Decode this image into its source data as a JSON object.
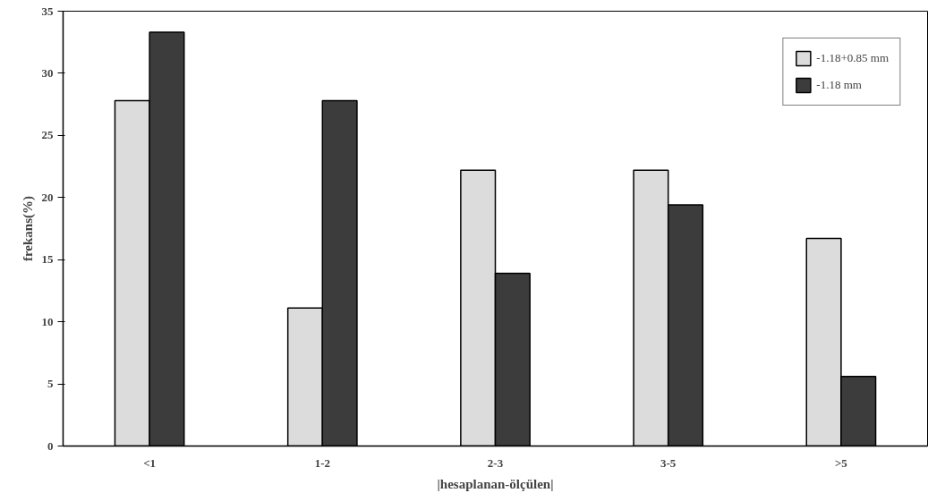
{
  "chart_data": {
    "type": "bar",
    "xlabel": "|hesaplanan-ölçülen|",
    "ylabel": "frekans(%)",
    "categories": [
      "<1",
      "1-2",
      "2-3",
      "3-5",
      ">5"
    ],
    "series": [
      {
        "name": "-1.18+0.85 mm",
        "color": "#dcdcdc",
        "values": [
          27.8,
          11.1,
          22.2,
          22.2,
          16.7
        ]
      },
      {
        "name": "-1.18 mm",
        "color": "#3c3c3c",
        "values": [
          33.3,
          27.8,
          13.9,
          19.4,
          5.6
        ]
      }
    ],
    "ylim": [
      0,
      35
    ],
    "yticks": [
      0,
      5,
      10,
      15,
      20,
      25,
      30,
      35
    ],
    "grid": false,
    "legend": "top right"
  }
}
